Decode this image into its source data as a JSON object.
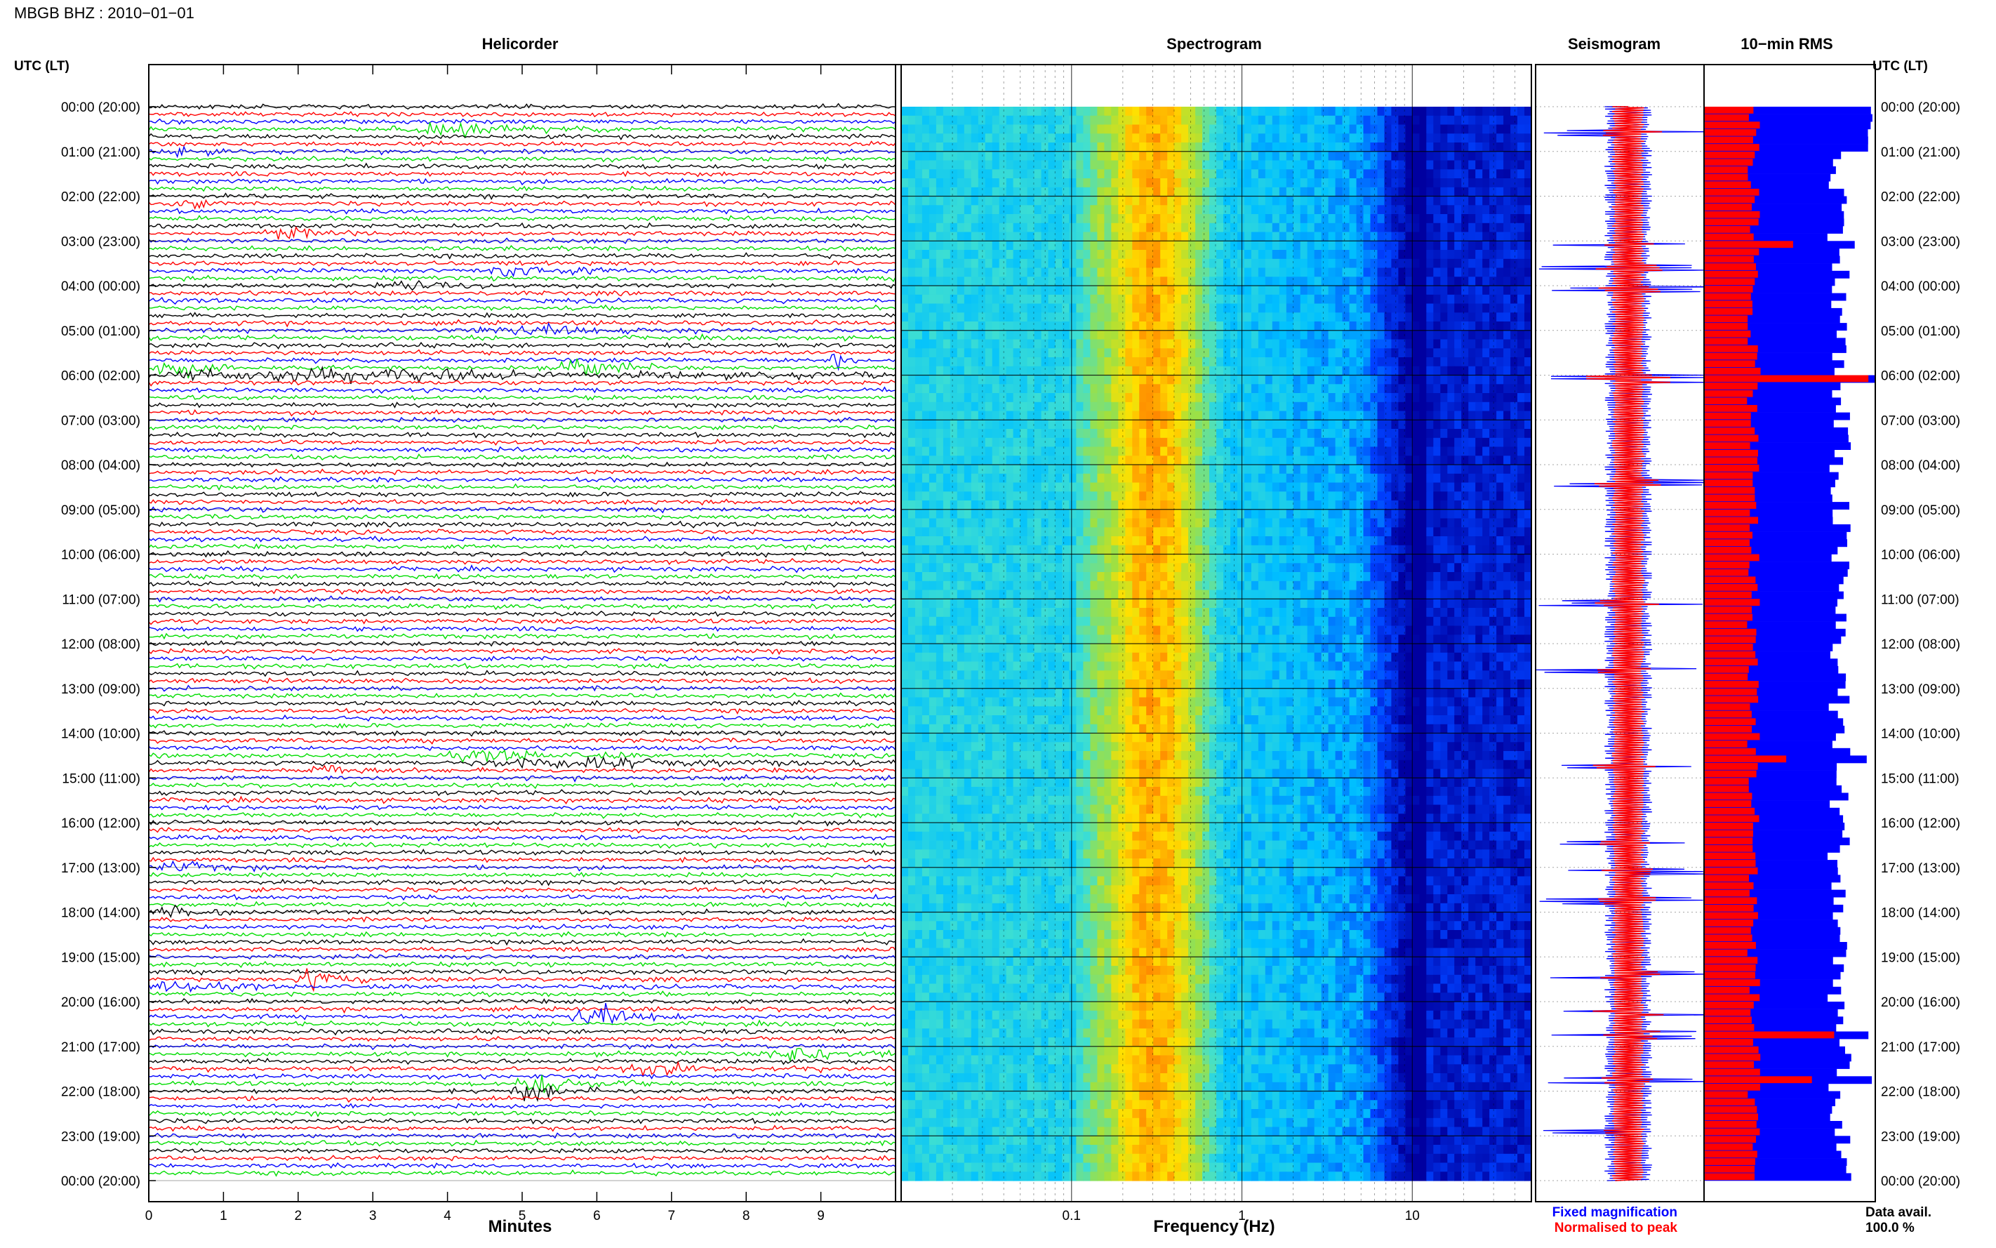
{
  "figure": {
    "title": "MBGB BHZ : 2010−01−01",
    "time_axis_label": "UTC (LT)",
    "data_availability_label": "Data avail.",
    "data_availability_value": "100.0 %"
  },
  "colors": {
    "trace_cycle": [
      "#000000",
      "#ff0000",
      "#0000ff",
      "#00dd00"
    ],
    "fixed_magnification": "#0000ff",
    "normalised_to_peak": "#ff0000",
    "spectrogram_colormap": [
      "#0000a0",
      "#0040ff",
      "#00c0ff",
      "#40e0d0",
      "#a0e040",
      "#ffe000",
      "#ff8000"
    ]
  },
  "chart_data": [
    {
      "type": "line",
      "title": "Helicorder",
      "xlabel": "Minutes",
      "x_ticks": [
        0,
        1,
        2,
        3,
        4,
        5,
        6,
        7,
        8,
        9
      ],
      "xlim": [
        0,
        10
      ],
      "rows_per_hour": 6,
      "hours": 24,
      "y_tick_labels": [
        "00:00 (20:00)",
        "01:00 (21:00)",
        "02:00 (22:00)",
        "03:00 (23:00)",
        "04:00 (00:00)",
        "05:00 (01:00)",
        "06:00 (02:00)",
        "07:00 (03:00)",
        "08:00 (04:00)",
        "09:00 (05:00)",
        "10:00 (06:00)",
        "11:00 (07:00)",
        "12:00 (08:00)",
        "13:00 (09:00)",
        "14:00 (10:00)",
        "15:00 (11:00)",
        "16:00 (12:00)",
        "17:00 (13:00)",
        "18:00 (14:00)",
        "19:00 (15:00)",
        "20:00 (16:00)",
        "21:00 (17:00)",
        "22:00 (18:00)",
        "23:00 (19:00)",
        "00:00 (20:00)"
      ],
      "events": [
        {
          "row": 3,
          "start": 3.2,
          "end": 6.5,
          "amp": 1.6
        },
        {
          "row": 6,
          "start": 0.2,
          "end": 1.0,
          "amp": 1.8
        },
        {
          "row": 13,
          "start": 0.3,
          "end": 1.2,
          "amp": 1.3
        },
        {
          "row": 17,
          "start": 1.4,
          "end": 2.8,
          "amp": 2.2
        },
        {
          "row": 22,
          "start": 4.4,
          "end": 6.2,
          "amp": 2.4
        },
        {
          "row": 24,
          "start": 3.0,
          "end": 4.5,
          "amp": 1.3
        },
        {
          "row": 30,
          "start": 4.3,
          "end": 7.5,
          "amp": 1.5
        },
        {
          "row": 34,
          "start": 9.1,
          "end": 9.5,
          "amp": 3.0
        },
        {
          "row": 35,
          "start": 0.0,
          "end": 1.2,
          "amp": 3.8
        },
        {
          "row": 35,
          "start": 5.5,
          "end": 6.8,
          "amp": 3.8
        },
        {
          "row": 36,
          "start": 0.0,
          "end": 10.0,
          "amp": 2.2
        },
        {
          "row": 87,
          "start": 4.0,
          "end": 6.5,
          "amp": 1.6
        },
        {
          "row": 88,
          "start": 4.3,
          "end": 9.7,
          "amp": 1.8
        },
        {
          "row": 89,
          "start": 2.0,
          "end": 3.5,
          "amp": 1.8
        },
        {
          "row": 102,
          "start": 0.0,
          "end": 1.6,
          "amp": 1.6
        },
        {
          "row": 108,
          "start": 0.0,
          "end": 1.2,
          "amp": 1.6
        },
        {
          "row": 117,
          "start": 1.9,
          "end": 3.0,
          "amp": 3.2
        },
        {
          "row": 118,
          "start": 0.0,
          "end": 1.5,
          "amp": 2.0
        },
        {
          "row": 122,
          "start": 5.6,
          "end": 7.1,
          "amp": 3.8
        },
        {
          "row": 127,
          "start": 8.2,
          "end": 10.0,
          "amp": 2.8
        },
        {
          "row": 129,
          "start": 6.0,
          "end": 9.0,
          "amp": 1.8
        },
        {
          "row": 131,
          "start": 4.8,
          "end": 6.5,
          "amp": 3.6
        },
        {
          "row": 132,
          "start": 4.8,
          "end": 6.0,
          "amp": 3.0
        }
      ]
    },
    {
      "type": "heatmap",
      "title": "Spectrogram",
      "xlabel": "Frequency (Hz)",
      "x_scale": "log",
      "xlim": [
        0.01,
        50
      ],
      "x_tick_labels": [
        "0.1",
        "1",
        "10"
      ],
      "x_ticks": [
        0.1,
        1,
        10
      ],
      "microseism_peak_hz": 0.3,
      "highcut_hz": 12
    },
    {
      "type": "line",
      "title": "Seismogram",
      "legend": [
        "Fixed magnification",
        "Normalised to peak"
      ],
      "spikes_row": [
        3,
        18,
        21,
        24,
        36,
        50,
        66,
        75,
        88,
        98,
        102,
        106,
        116,
        121,
        124,
        130,
        137
      ]
    },
    {
      "type": "bar",
      "title": "10−min RMS",
      "orientation": "horizontal",
      "fixed_rms_base": 0.79,
      "normalised_rms_base": 0.29,
      "peaks": [
        {
          "row": 18,
          "fixed": 0.88,
          "norm": 0.52
        },
        {
          "row": 36,
          "fixed": 1.0,
          "norm": 0.96
        },
        {
          "row": 87,
          "fixed": 0.95,
          "norm": 0.48
        },
        {
          "row": 124,
          "fixed": 0.96,
          "norm": 0.76
        },
        {
          "row": 130,
          "fixed": 0.98,
          "norm": 0.63
        }
      ]
    }
  ]
}
